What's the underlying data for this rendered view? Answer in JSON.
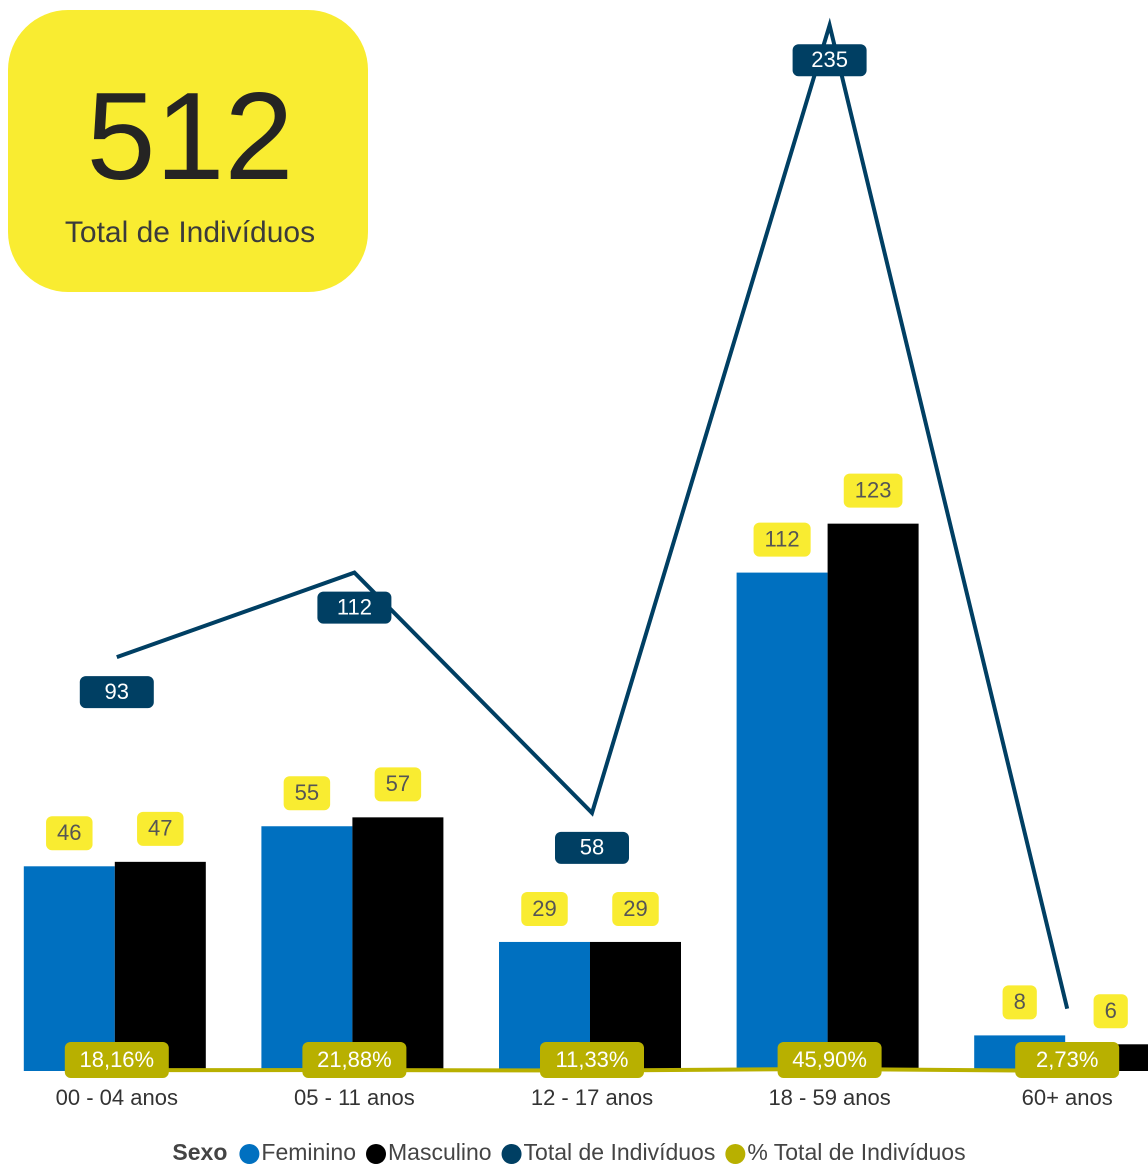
{
  "kpi": {
    "value": 512,
    "label": "Total de Indivíduos"
  },
  "chart_data": {
    "type": "bar",
    "categories": [
      "00 - 04 anos",
      "05 - 11 anos",
      "12 - 17 anos",
      "18 - 59 anos",
      "60+ anos"
    ],
    "ylim": [
      0,
      240
    ],
    "legend_title": "Sexo",
    "series": [
      {
        "name": "Feminino",
        "color": "#0070c0",
        "values": [
          46,
          55,
          29,
          112,
          8
        ]
      },
      {
        "name": "Masculino",
        "color": "#000000",
        "values": [
          47,
          57,
          29,
          123,
          6
        ]
      },
      {
        "name": "Total de Indivíduos",
        "type": "line",
        "color": "#003f63",
        "values": [
          93,
          112,
          58,
          235,
          14
        ],
        "value_labels": [
          "93",
          "112",
          "58",
          "235",
          null
        ]
      },
      {
        "name": "% Total de Indivíduos",
        "type": "line",
        "color": "#b8b000",
        "values": [
          0.1816,
          0.2188,
          0.1133,
          0.459,
          0.0273
        ],
        "value_labels": [
          "18,16%",
          "21,88%",
          "11,33%",
          "45,90%",
          "2,73%"
        ]
      }
    ]
  }
}
